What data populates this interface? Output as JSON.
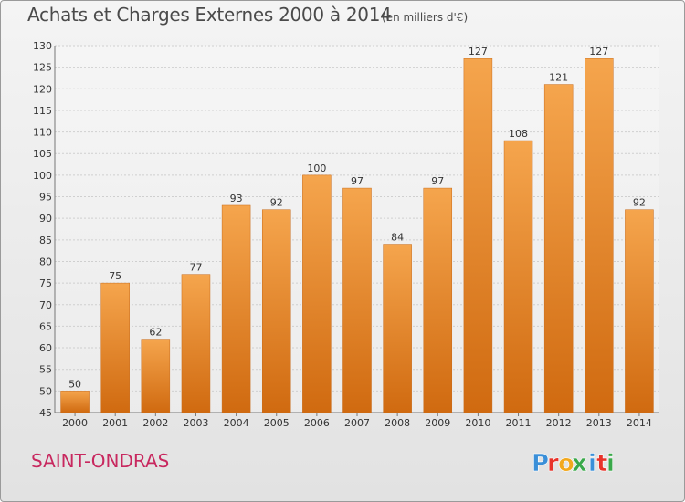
{
  "title": "Achats et Charges Externes 2000 à 2014",
  "unit": "(en milliers d'€)",
  "commune": "SAINT-ONDRAS",
  "logo": {
    "text": "Proxiti",
    "colors": [
      "#3a8fd8",
      "#e8332a",
      "#f2a81d",
      "#3aa84a",
      "#3a8fd8",
      "#e8332a",
      "#3aa84a"
    ]
  },
  "colors": {
    "bar_light": "#f5a54d",
    "bar_dark": "#d06a10",
    "axis_text": "#333333",
    "grid": "#cfcfcf"
  },
  "chart_data": {
    "type": "bar",
    "title": "Achats et Charges Externes 2000 à 2014",
    "xlabel": "",
    "ylabel": "",
    "ylim": [
      45,
      130
    ],
    "yticks": [
      45,
      50,
      55,
      60,
      65,
      70,
      75,
      80,
      85,
      90,
      95,
      100,
      105,
      110,
      115,
      120,
      125,
      130
    ],
    "grid": true,
    "categories": [
      "2000",
      "2001",
      "2002",
      "2003",
      "2004",
      "2005",
      "2006",
      "2007",
      "2008",
      "2009",
      "2010",
      "2011",
      "2012",
      "2013",
      "2014"
    ],
    "values": [
      50,
      75,
      62,
      77,
      93,
      92,
      100,
      97,
      84,
      97,
      127,
      108,
      121,
      127,
      92
    ]
  }
}
